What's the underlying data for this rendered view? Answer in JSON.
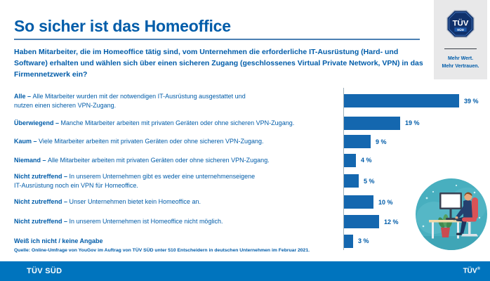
{
  "header": {
    "title": "So sicher ist das Homeoffice",
    "question": "Haben Mitarbeiter, die im Homeoffice tätig sind, vom Unternehmen die erforderliche IT-Ausrüstung (Hard- und Software) erhalten und wählen sich über einen sicheren Zugang (geschlossenes Virtual Private Network, VPN) in das Firmennetzwerk ein?"
  },
  "branding": {
    "logo_text": "TÜV",
    "logo_subtext": "SÜD",
    "tagline_line1": "Mehr Wert.",
    "tagline_line2": "Mehr Vertrauen."
  },
  "chart_data": {
    "type": "bar",
    "orientation": "horizontal",
    "unit": "%",
    "xlim": [
      0,
      40
    ],
    "grid": false,
    "legend": false,
    "categories": [
      "Alle",
      "Überwiegend",
      "Kaum",
      "Niemand",
      "Nicht zutreffend",
      "Nicht zutreffend",
      "Nicht zutreffend",
      "Weiß ich nicht / keine Angabe"
    ],
    "descriptions": [
      "Alle Mitarbeiter wurden mit der notwendigen IT-Ausrüstung ausgestattet und\nnutzen einen sicheren VPN-Zugang.",
      "Manche Mitarbeiter arbeiten mit privaten Geräten oder ohne sicheren VPN-Zugang.",
      "Viele Mitarbeiter arbeiten mit privaten Geräten oder ohne sicheren VPN-Zugang.",
      "Alle Mitarbeiter arbeiten mit privaten Geräten oder ohne sicheren VPN-Zugang.",
      "In unserem Unternehmen gibt es weder eine unternehmenseigene\nIT-Ausrüstung noch ein VPN für Homeoffice.",
      "Unser Unternehmen bietet kein Homeoffice an.",
      "In unserem Unternehmen ist Homeoffice nicht möglich.",
      ""
    ],
    "values": [
      39,
      19,
      9,
      4,
      5,
      10,
      12,
      3
    ],
    "value_labels": [
      "39 %",
      "19 %",
      "9 %",
      "4 %",
      "5 %",
      "10 %",
      "12 %",
      "3 %"
    ]
  },
  "source": "Quelle: Online-Umfrage von YouGov im Auftrag von TÜV SÜD unter 510 Entscheidern in deutschen Unternehmen im Februar 2021.",
  "footer": {
    "left": "TÜV SÜD",
    "right_brand": "TÜV",
    "right_reg": "®"
  },
  "colors": {
    "text_blue": "#005CA9",
    "bar_blue": "#1467AF",
    "footer_blue": "#0074BE",
    "panel_gray": "#E8E8E9",
    "title_rule_blue": "#4C80B3",
    "axis_gray": "#9FB0BA",
    "illustration_teal": "#48AFBF",
    "logo_navy": "#10316B",
    "chair_red": "#D95357"
  }
}
